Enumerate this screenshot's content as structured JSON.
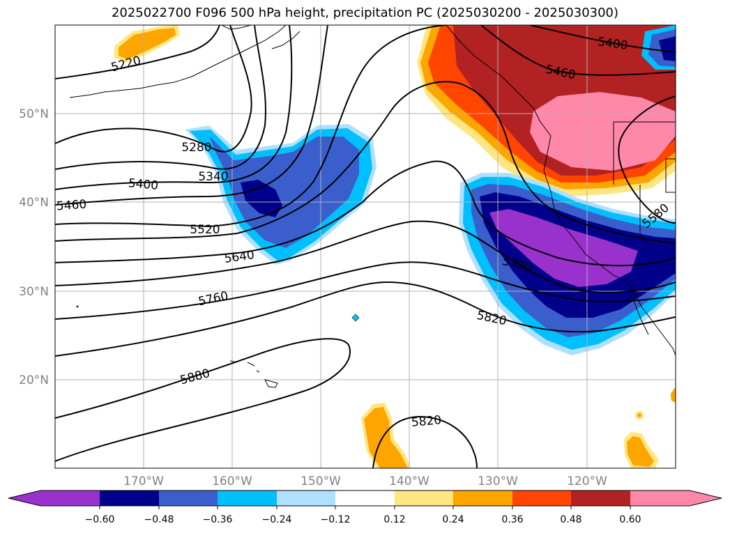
{
  "title": "2025022700 F096 500 hPa height, precipitation PC (2025030200 - 2025030300)",
  "lon_ticks": [
    "170°W",
    "160°W",
    "150°W",
    "140°W",
    "130°W",
    "120°W"
  ],
  "lat_ticks": [
    "50°N",
    "40°N",
    "30°N",
    "20°N"
  ],
  "contour_labels": [
    "5220",
    "5280",
    "5340",
    "5400",
    "5460",
    "5520",
    "5640",
    "5760",
    "5880",
    "5820",
    "5820",
    "5400",
    "5460",
    "5580",
    "5700"
  ],
  "colorbar": {
    "ticks": [
      "−0.60",
      "−0.48",
      "−0.36",
      "−0.24",
      "−0.12",
      "0.12",
      "0.24",
      "0.36",
      "0.48",
      "0.60"
    ],
    "colors": [
      "#9932cc",
      "#00008b",
      "#3a5fcd",
      "#00bfff",
      "#b0e0ff",
      "#ffffff",
      "#ffe680",
      "#ffa500",
      "#ff4500",
      "#b22222",
      "#ff88aa"
    ]
  }
}
